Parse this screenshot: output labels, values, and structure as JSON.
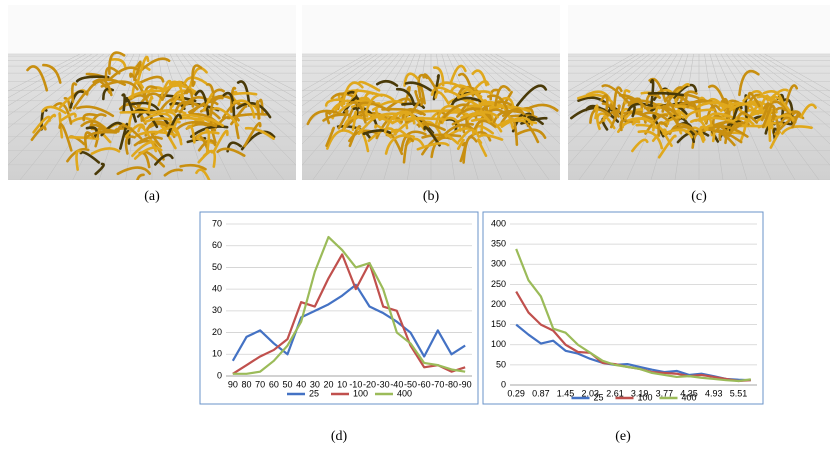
{
  "figures": [
    {
      "caption": "(a)"
    },
    {
      "caption": "(b)"
    },
    {
      "caption": "(c)"
    }
  ],
  "chart_data": [
    {
      "type": "line",
      "caption": "(d)",
      "categories": [
        "90",
        "80",
        "70",
        "60",
        "50",
        "40",
        "30",
        "20",
        "10",
        "-10",
        "-20",
        "-30",
        "-40",
        "-50",
        "-60",
        "-70",
        "-80",
        "-90"
      ],
      "series": [
        {
          "name": "25",
          "color": "#4472c4",
          "values": [
            7,
            18,
            21,
            15,
            10,
            27,
            30,
            33,
            37,
            42,
            32,
            29,
            25,
            20,
            9,
            21,
            10,
            14
          ]
        },
        {
          "name": "100",
          "color": "#c0504d",
          "values": [
            1,
            5,
            9,
            12,
            17,
            34,
            32,
            45,
            56,
            40,
            52,
            32,
            30,
            14,
            4,
            5,
            2,
            4
          ]
        },
        {
          "name": "400",
          "color": "#9bbb59",
          "values": [
            1,
            1,
            2,
            7,
            14,
            25,
            48,
            64,
            58,
            50,
            52,
            40,
            20,
            15,
            6,
            5,
            3,
            2
          ]
        }
      ],
      "ylim": [
        0,
        70
      ],
      "yticks": [
        0,
        10,
        20,
        30,
        40,
        50,
        60,
        70
      ],
      "grid": true,
      "legend": "bottom"
    },
    {
      "type": "line",
      "caption": "(e)",
      "categories": [
        "0.29",
        null,
        "0.87",
        null,
        "1.45",
        null,
        "2.03",
        null,
        "2.61",
        null,
        "3.19",
        null,
        "3.77",
        null,
        "4.35",
        null,
        "4.93",
        null,
        "5.51",
        null
      ],
      "series": [
        {
          "name": "25",
          "color": "#4472c4",
          "values": [
            150,
            125,
            103,
            110,
            85,
            78,
            65,
            55,
            50,
            52,
            45,
            38,
            32,
            35,
            25,
            28,
            22,
            15,
            13,
            12
          ]
        },
        {
          "name": "100",
          "color": "#c0504d",
          "values": [
            232,
            180,
            150,
            135,
            100,
            82,
            80,
            55,
            52,
            45,
            40,
            32,
            30,
            28,
            22,
            25,
            20,
            15,
            10,
            12
          ]
        },
        {
          "name": "400",
          "color": "#9bbb59",
          "values": [
            338,
            260,
            220,
            140,
            130,
            100,
            80,
            60,
            50,
            45,
            40,
            30,
            25,
            20,
            22,
            18,
            15,
            12,
            10,
            14
          ]
        }
      ],
      "ylim": [
        0,
        400
      ],
      "yticks": [
        0,
        50,
        100,
        150,
        200,
        250,
        300,
        350,
        400
      ],
      "grid": true,
      "legend": "bottom"
    }
  ]
}
